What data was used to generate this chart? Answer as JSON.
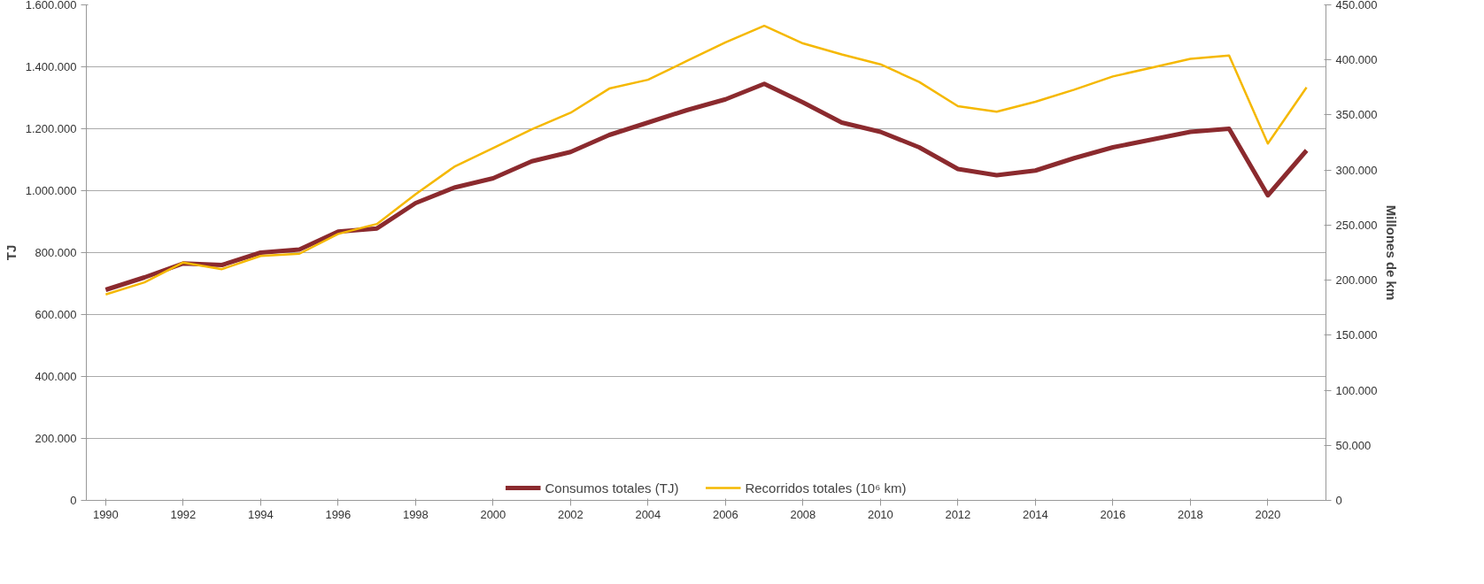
{
  "chart_data": {
    "type": "line",
    "ylabel": "TJ",
    "y2label": "Millones de km",
    "x": [
      1990,
      1991,
      1992,
      1993,
      1994,
      1995,
      1996,
      1997,
      1998,
      1999,
      2000,
      2001,
      2002,
      2003,
      2004,
      2005,
      2006,
      2007,
      2008,
      2009,
      2010,
      2011,
      2012,
      2013,
      2014,
      2015,
      2016,
      2017,
      2018,
      2019,
      2020,
      2021
    ],
    "series": [
      {
        "name": "Consumos totales (TJ)",
        "color": "#8b2a2e",
        "values": [
          680000,
          720000,
          765000,
          760000,
          800000,
          810000,
          868000,
          878000,
          960000,
          1010000,
          1040000,
          1095000,
          1125000,
          1180000,
          1220000,
          1260000,
          1295000,
          1345000,
          1285000,
          1220000,
          1190000,
          1140000,
          1070000,
          1050000,
          1065000,
          1105000,
          1140000,
          1165000,
          1190000,
          1200000,
          985000,
          1130000
        ]
      },
      {
        "name": "Recorridos totales (10⁶ km)",
        "color": "#f5b800",
        "axis": "y2",
        "values": [
          187000,
          198000,
          216000,
          210000,
          222000,
          224000,
          242000,
          251000,
          278000,
          303000,
          320000,
          337000,
          352000,
          374000,
          382000,
          399000,
          416000,
          431000,
          415000,
          405000,
          396000,
          380000,
          358000,
          353000,
          362000,
          373000,
          385000,
          393000,
          401000,
          404000,
          324000,
          375000
        ]
      }
    ],
    "xlim": [
      1989.5,
      2021.5
    ],
    "xticks": [
      1990,
      1992,
      1994,
      1996,
      1998,
      2000,
      2002,
      2004,
      2006,
      2008,
      2010,
      2012,
      2014,
      2016,
      2018,
      2020
    ],
    "ylim": [
      0,
      1600000
    ],
    "yticks": [
      0,
      {
        "value": 200000,
        "label": "200.000"
      },
      {
        "value": 400000,
        "label": "400.000"
      },
      {
        "value": 600000,
        "label": "600.000"
      },
      {
        "value": 800000,
        "label": "800.000"
      },
      {
        "value": 1000000,
        "label": "1.000.000"
      },
      {
        "value": 1200000,
        "label": "1.200.000"
      },
      {
        "value": 1400000,
        "label": "1.400.000"
      },
      {
        "value": 1600000,
        "label": "1.600.000"
      }
    ],
    "y2lim": [
      0,
      450000
    ],
    "y2ticks": [
      0,
      {
        "value": 50000,
        "label": "50.000"
      },
      {
        "value": 100000,
        "label": "100.000"
      },
      {
        "value": 150000,
        "label": "150.000"
      },
      {
        "value": 200000,
        "label": "200.000"
      },
      {
        "value": 250000,
        "label": "250.000"
      },
      {
        "value": 300000,
        "label": "300.000"
      },
      {
        "value": 350000,
        "label": "350.000"
      },
      {
        "value": 400000,
        "label": "400.000"
      },
      {
        "value": 450000,
        "label": "450.000"
      }
    ],
    "grid": "y",
    "legend": "bottom",
    "marker": "none",
    "line_style": "solid"
  }
}
